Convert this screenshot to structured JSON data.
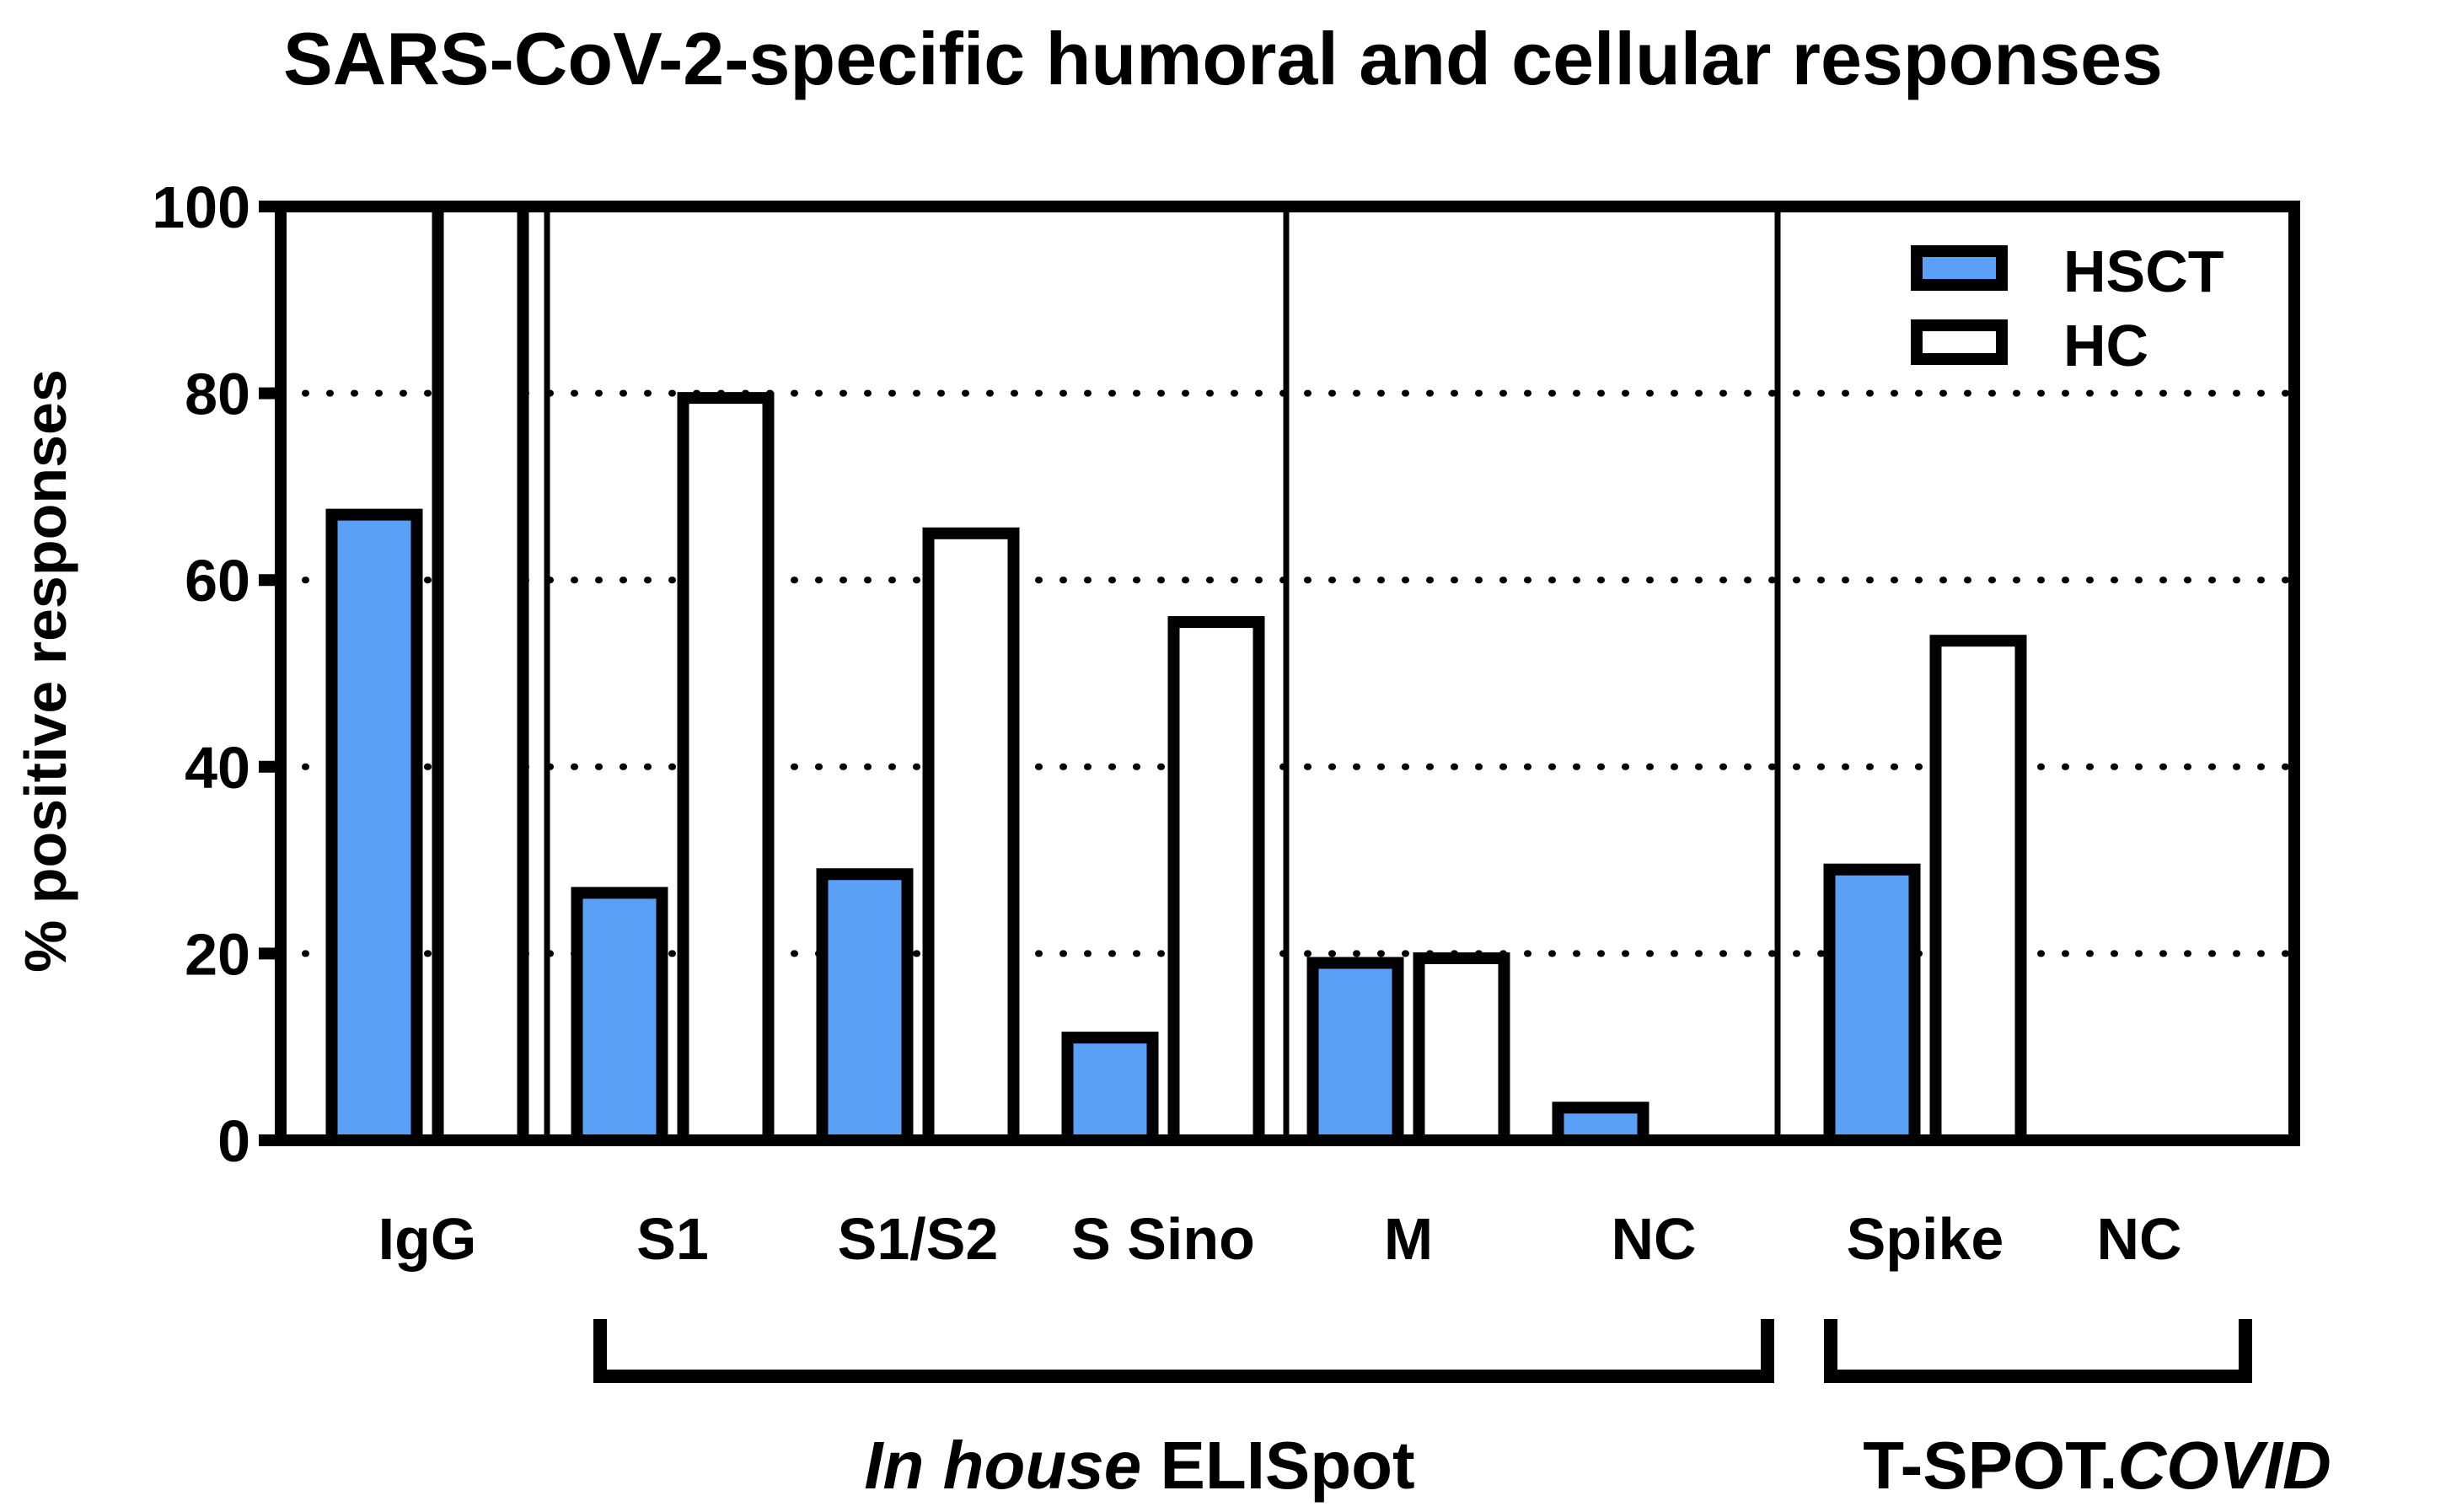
{
  "chart_data": {
    "type": "bar",
    "title": "SARS-CoV-2-specific humoral and cellular responses",
    "ylabel": "% positive responses",
    "xlabel": "",
    "ylim": [
      0,
      100
    ],
    "yticks": [
      "0",
      "20",
      "40",
      "60",
      "80",
      "100"
    ],
    "grid": "dotted horizontal at 20, 40, 60, 80",
    "legend_position": "top-right",
    "categories": [
      "IgG",
      "S1",
      "S1/S2",
      "S Sino",
      "M",
      "NC",
      "Spike",
      "NC"
    ],
    "series": [
      {
        "name": "HSCT",
        "color": "#5aa0f7",
        "values": [
          67,
          26.5,
          28.5,
          11,
          19,
          3.5,
          29,
          0
        ]
      },
      {
        "name": "HC",
        "color": "#ffffff",
        "values": [
          100,
          79.5,
          65,
          55.5,
          19.5,
          0,
          53.5,
          0
        ]
      }
    ],
    "groups": [
      {
        "label_italic": "In house",
        "label_rest": " ELISpot",
        "categories": [
          "S1",
          "S1/S2",
          "S Sino",
          "M",
          "NC"
        ]
      },
      {
        "label_rest": "T-SPOT.",
        "label_italic": "COVID",
        "categories": [
          "Spike",
          "NC"
        ]
      }
    ]
  }
}
